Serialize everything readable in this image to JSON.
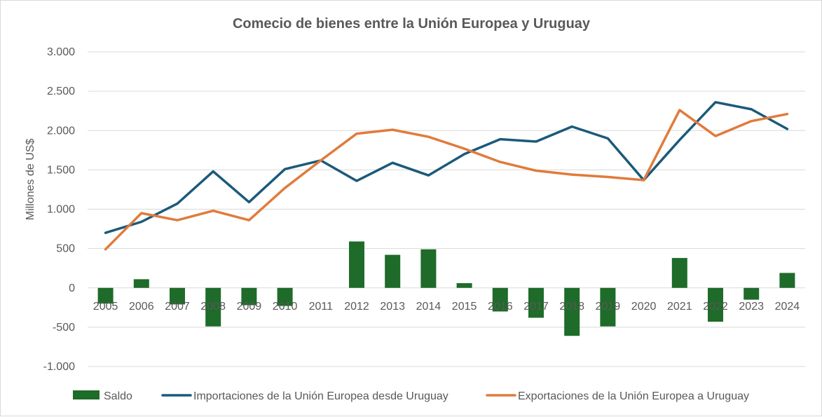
{
  "chart_data": {
    "type": "bar+line",
    "title": "Comecio de bienes entre la Unión Europea y Uruguay",
    "ylabel": "Millones de US$",
    "xlabel": "",
    "ylim": [
      -1000,
      3000
    ],
    "yticks": [
      3000,
      2500,
      2000,
      1500,
      1000,
      500,
      0,
      -500,
      -1000
    ],
    "ytick_labels": [
      "3.000",
      "2.500",
      "2.000",
      "1.500",
      "1.000",
      "500",
      "0",
      "-500",
      "-1.000"
    ],
    "categories": [
      "2005",
      "2006",
      "2007",
      "2008",
      "2009",
      "2010",
      "2011",
      "2012",
      "2013",
      "2014",
      "2015",
      "2016",
      "2017",
      "2018",
      "2019",
      "2020",
      "2021",
      "2022",
      "2023",
      "2024"
    ],
    "grid": true,
    "legend_position": "bottom",
    "series": [
      {
        "name": "Saldo",
        "kind": "bar",
        "color": "#1e6b2a",
        "values": [
          -200,
          110,
          -210,
          -490,
          -220,
          -230,
          0,
          590,
          420,
          490,
          60,
          -300,
          -380,
          -610,
          -490,
          0,
          380,
          -430,
          -150,
          190
        ]
      },
      {
        "name": "Importaciones de la Unión Europea desde Uruguay",
        "kind": "line",
        "color": "#1b5a7a",
        "values": [
          700,
          840,
          1070,
          1480,
          1090,
          1510,
          1620,
          1360,
          1590,
          1430,
          1700,
          1890,
          1860,
          2050,
          1900,
          1370,
          1880,
          2360,
          2270,
          2020
        ]
      },
      {
        "name": "Exportaciones de la Unión Europea a Uruguay",
        "kind": "line",
        "color": "#e07b3c",
        "values": [
          490,
          950,
          860,
          980,
          860,
          1270,
          1620,
          1960,
          2010,
          1920,
          1770,
          1600,
          1490,
          1440,
          1410,
          1370,
          2260,
          1930,
          2120,
          2210
        ]
      }
    ]
  }
}
